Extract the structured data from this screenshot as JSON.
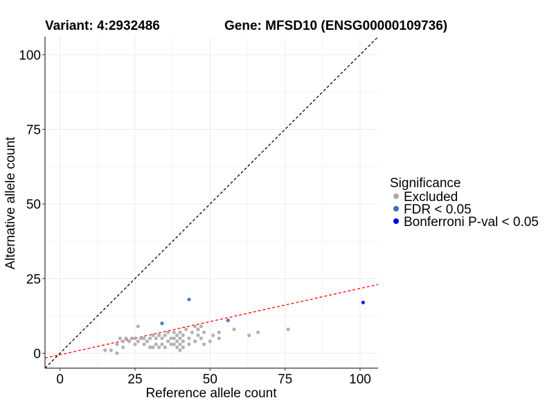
{
  "chart_data": {
    "type": "scatter",
    "title_left": "Variant: 4:2932486",
    "title_right": "Gene: MFSD10 (ENSG00000109736)",
    "xlabel": "Reference allele count",
    "ylabel": "Alternative allele count",
    "xlim": [
      -5,
      106
    ],
    "ylim": [
      -5,
      106
    ],
    "x_ticks": [
      0,
      25,
      50,
      75,
      100
    ],
    "y_ticks": [
      0,
      25,
      50,
      75,
      100
    ],
    "grid": true,
    "legend": {
      "title": "Significance",
      "position": "right",
      "entries": [
        {
          "label": "Excluded",
          "color": "#aaaaaa"
        },
        {
          "label": "FDR < 0.05",
          "color": "#3a6fb0"
        },
        {
          "label": "Bonferroni P-val < 0.05",
          "color": "#0000ee"
        }
      ]
    },
    "reference_lines": [
      {
        "name": "identity",
        "slope": 1,
        "intercept": 0,
        "color": "#000000",
        "dash": true
      },
      {
        "name": "fit",
        "slope": 0.222,
        "intercept": -0.5,
        "color": "#ff0000",
        "dash": true
      }
    ],
    "series": [
      {
        "name": "Excluded",
        "color": "#aaaaaa",
        "points": [
          [
            15,
            1
          ],
          [
            17,
            1
          ],
          [
            19,
            0
          ],
          [
            19,
            3
          ],
          [
            20,
            5
          ],
          [
            21,
            2
          ],
          [
            21,
            4
          ],
          [
            22,
            5
          ],
          [
            23,
            4
          ],
          [
            24,
            5
          ],
          [
            25,
            3
          ],
          [
            25,
            5
          ],
          [
            26,
            9
          ],
          [
            26,
            4
          ],
          [
            27,
            5
          ],
          [
            28,
            3
          ],
          [
            28,
            5
          ],
          [
            29,
            4
          ],
          [
            30,
            2
          ],
          [
            30,
            5
          ],
          [
            31,
            2
          ],
          [
            31,
            6
          ],
          [
            32,
            3
          ],
          [
            32,
            5
          ],
          [
            33,
            2
          ],
          [
            33,
            6
          ],
          [
            34,
            3
          ],
          [
            34,
            5
          ],
          [
            35,
            2
          ],
          [
            35,
            6
          ],
          [
            36,
            4
          ],
          [
            36,
            7
          ],
          [
            37,
            3
          ],
          [
            37,
            5
          ],
          [
            38,
            5
          ],
          [
            38,
            3
          ],
          [
            38,
            7
          ],
          [
            39,
            2
          ],
          [
            39,
            4
          ],
          [
            39,
            6
          ],
          [
            40,
            3
          ],
          [
            40,
            1
          ],
          [
            40,
            5
          ],
          [
            40,
            7
          ],
          [
            41,
            2
          ],
          [
            41,
            4
          ],
          [
            41,
            6
          ],
          [
            42,
            8
          ],
          [
            43,
            5
          ],
          [
            43,
            3
          ],
          [
            44,
            7
          ],
          [
            45,
            4
          ],
          [
            45,
            9
          ],
          [
            46,
            6
          ],
          [
            46,
            8
          ],
          [
            47,
            9
          ],
          [
            47,
            5
          ],
          [
            48,
            3
          ],
          [
            48,
            7
          ],
          [
            50,
            4
          ],
          [
            51,
            6
          ],
          [
            53,
            7
          ],
          [
            53,
            5
          ],
          [
            58,
            8
          ],
          [
            63,
            6
          ],
          [
            66,
            7
          ],
          [
            76,
            8
          ]
        ]
      },
      {
        "name": "FDR < 0.05",
        "color": "#3a6fb0",
        "points": [
          [
            34,
            10
          ],
          [
            43,
            18
          ],
          [
            56,
            11
          ]
        ]
      },
      {
        "name": "Bonferroni P-val < 0.05",
        "color": "#0000ee",
        "points": [
          [
            101,
            17
          ]
        ]
      }
    ]
  }
}
